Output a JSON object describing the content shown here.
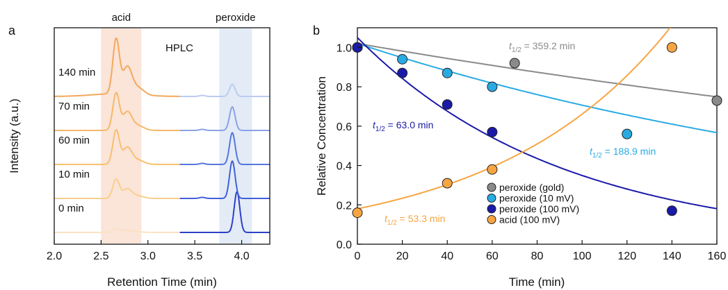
{
  "chart_data": [
    {
      "panel": "a",
      "type": "line",
      "xlabel": "Retention Time (min)",
      "ylabel": "Intensity (a.u.)",
      "xlim": [
        2.0,
        4.3
      ],
      "xticks": [
        "2.0",
        "2.5",
        "3.0",
        "3.5",
        "4.0"
      ],
      "inset_label": "HPLC",
      "regions": [
        {
          "label": "acid",
          "x0": 2.5,
          "x1": 2.93,
          "color": "#fbe4d8"
        },
        {
          "label": "peroxide",
          "x0": 3.76,
          "x1": 4.11,
          "color": "#e3ebf6"
        }
      ],
      "series": [
        {
          "name": "0 min",
          "acid_color": "#fbe2c4",
          "perox_color": "#2c3fc8",
          "acid_peak": 0.08,
          "perox_peak": 1.0
        },
        {
          "name": "10 min",
          "acid_color": "#f9cf8e",
          "perox_color": "#4160d8",
          "acid_peak": 0.35,
          "perox_peak": 0.92
        },
        {
          "name": "60 min",
          "acid_color": "#f7c070",
          "perox_color": "#5676de",
          "acid_peak": 0.62,
          "perox_peak": 0.78
        },
        {
          "name": "70 min",
          "acid_color": "#f6b86a",
          "perox_color": "#8aa2e6",
          "acid_peak": 0.68,
          "perox_peak": 0.58
        },
        {
          "name": "140 min",
          "acid_color": "#f3a85c",
          "perox_color": "#bccbf2",
          "acid_peak": 1.0,
          "perox_peak": 0.3
        }
      ]
    },
    {
      "panel": "b",
      "type": "scatter",
      "xlabel": "Time (min)",
      "ylabel": "Relative Concentration",
      "xlim": [
        0,
        160
      ],
      "ylim": [
        0,
        1.1
      ],
      "xticks": [
        0,
        20,
        40,
        60,
        80,
        100,
        120,
        140,
        160
      ],
      "yticks": [
        "0.0",
        "0.2",
        "0.4",
        "0.6",
        "0.8",
        "1.0"
      ],
      "legend": "bottom-center",
      "series": [
        {
          "name": "peroxide (gold)",
          "color": "#8a8a8a",
          "x": [
            0,
            70,
            160
          ],
          "y": [
            1.0,
            0.92,
            0.73
          ],
          "fit": {
            "kind": "decay",
            "y0": 1.02,
            "t_half": 359.2
          },
          "annotation": {
            "prefix": "t",
            "sub": "1/2",
            "text": " = 359.2 min"
          }
        },
        {
          "name": "peroxide (10 mV)",
          "color": "#29abe2",
          "x": [
            0,
            20,
            40,
            60,
            120
          ],
          "y": [
            1.0,
            0.94,
            0.87,
            0.8,
            0.56
          ],
          "fit": {
            "kind": "decay",
            "y0": 1.02,
            "t_half": 188.9
          },
          "annotation": {
            "prefix": "t",
            "sub": "1/2",
            "text": " = 188.9 min"
          }
        },
        {
          "name": "peroxide (100 mV)",
          "color": "#1a1aa8",
          "x": [
            0,
            20,
            40,
            60,
            140
          ],
          "y": [
            1.0,
            0.87,
            0.71,
            0.57,
            0.17
          ],
          "fit": {
            "kind": "decay",
            "y0": 1.05,
            "t_half": 63.0
          },
          "annotation": {
            "prefix": "t",
            "sub": "1/2",
            "text": " = 63.0 min"
          }
        },
        {
          "name": "acid (100 mV)",
          "color": "#f7a542",
          "x": [
            0,
            40,
            60,
            140
          ],
          "y": [
            0.16,
            0.31,
            0.38,
            1.0
          ],
          "fit": {
            "kind": "growth",
            "y0": 0.18,
            "t_half": 53.3
          },
          "annotation": {
            "prefix": "t",
            "sub": "1/2",
            "text": " = 53.3 min"
          }
        }
      ]
    }
  ]
}
